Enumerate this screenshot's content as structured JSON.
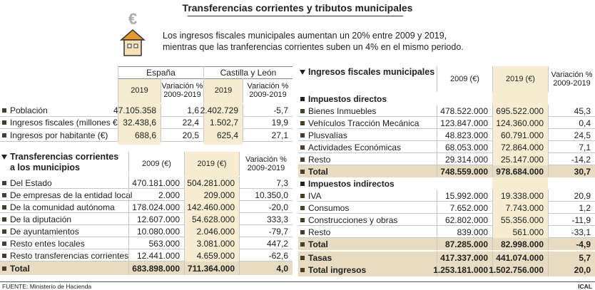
{
  "title": "Transferencias corrientes y tributos municipales",
  "intro": [
    "Los ingresos fiscales municipales aumentan un 20% entre 2009 y 2019,",
    "mientras que las tranferencias corrientes suben un 4% en el mismo periodo."
  ],
  "table1": {
    "groups": [
      "España",
      "Castilla y León"
    ],
    "columns": [
      "2019",
      "Variación %\n2009-2019",
      "2019",
      "Variación %\n2009-2019"
    ],
    "rows": [
      [
        "Población",
        "47.105.358",
        "1,6",
        "2.402.729",
        "-5,7"
      ],
      [
        "Ingresos fiscales (millones €)",
        "32.438,6",
        "22,4",
        "1.502,7",
        "19,9"
      ],
      [
        "Ingresos por habitante (€)",
        "688,6",
        "20,5",
        "625,4",
        "27,1"
      ]
    ]
  },
  "table2": {
    "title": "Transferencias corrientes\na los municipios",
    "columns": [
      "2009 (€)",
      "2019 (€)",
      "Variación %\n2009-2019"
    ],
    "rows": [
      [
        "Del Estado",
        "470.181.000",
        "504.281.000",
        "7,3"
      ],
      [
        "De empresas de la entidad local",
        "2.000",
        "209.000",
        "10.350,0"
      ],
      [
        "De la comunidad autónoma",
        "178.024.000",
        "142.460.000",
        "-20,0"
      ],
      [
        "De la diputación",
        "12.607.000",
        "54.628.000",
        "333,3"
      ],
      [
        "De ayuntamientos",
        "10.080.000",
        "2.046.000",
        "-79,7"
      ],
      [
        "Resto entes locales",
        "563.000",
        "3.081.000",
        "447,2"
      ],
      [
        "Resto transferencias corrientes",
        "12.441.000",
        "4.659.000",
        "-62,6"
      ]
    ],
    "total": [
      "Total",
      "683.898.000",
      "711.364.000",
      "4,0"
    ]
  },
  "table3": {
    "title": "Ingresos fiscales municipales",
    "columns": [
      "2009 (€)",
      "2019 (€)",
      "Variación %\n2009-2019"
    ],
    "sections": [
      {
        "title": "Impuestos directos",
        "rows": [
          [
            "Bienes Inmuebles",
            "478.522.000",
            "695.522.000",
            "45,3"
          ],
          [
            "Vehículos Tracción Mecánica",
            "123.847.000",
            "124.360.000",
            "0,4"
          ],
          [
            "Plusvalías",
            "48.823.000",
            "60.791.000",
            "24,5"
          ],
          [
            "Actividades Económicas",
            "68.053.000",
            "72.864.000",
            "7,1"
          ],
          [
            "Resto",
            "29.314.000",
            "25.147.000",
            "-14,2"
          ]
        ],
        "total": [
          "Total",
          "748.559.000",
          "978.684.000",
          "30,7"
        ]
      },
      {
        "title": "Impuestos indirectos",
        "rows": [
          [
            "IVA",
            "15.992.000",
            "19.338.000",
            "20,9"
          ],
          [
            "Consumos",
            "7.652.000",
            "7.743.000",
            "1,2"
          ],
          [
            "Construcciones y obras",
            "62.802.000",
            "55.356.000",
            "-11,9"
          ],
          [
            "Resto",
            "839.000",
            "561.000",
            "-33,1"
          ]
        ],
        "total": [
          "Total",
          "87.285.000",
          "82.998.000",
          "-4,9"
        ]
      }
    ],
    "tasas": [
      "Tasas",
      "417.337.000",
      "441.074.000",
      "5,7"
    ],
    "total": [
      "Total ingresos",
      "1.253.181.000",
      "1.502.756.000",
      "20,0"
    ]
  },
  "source": "FUENTE: Ministerio de Hacienda",
  "credit": "ICAL"
}
